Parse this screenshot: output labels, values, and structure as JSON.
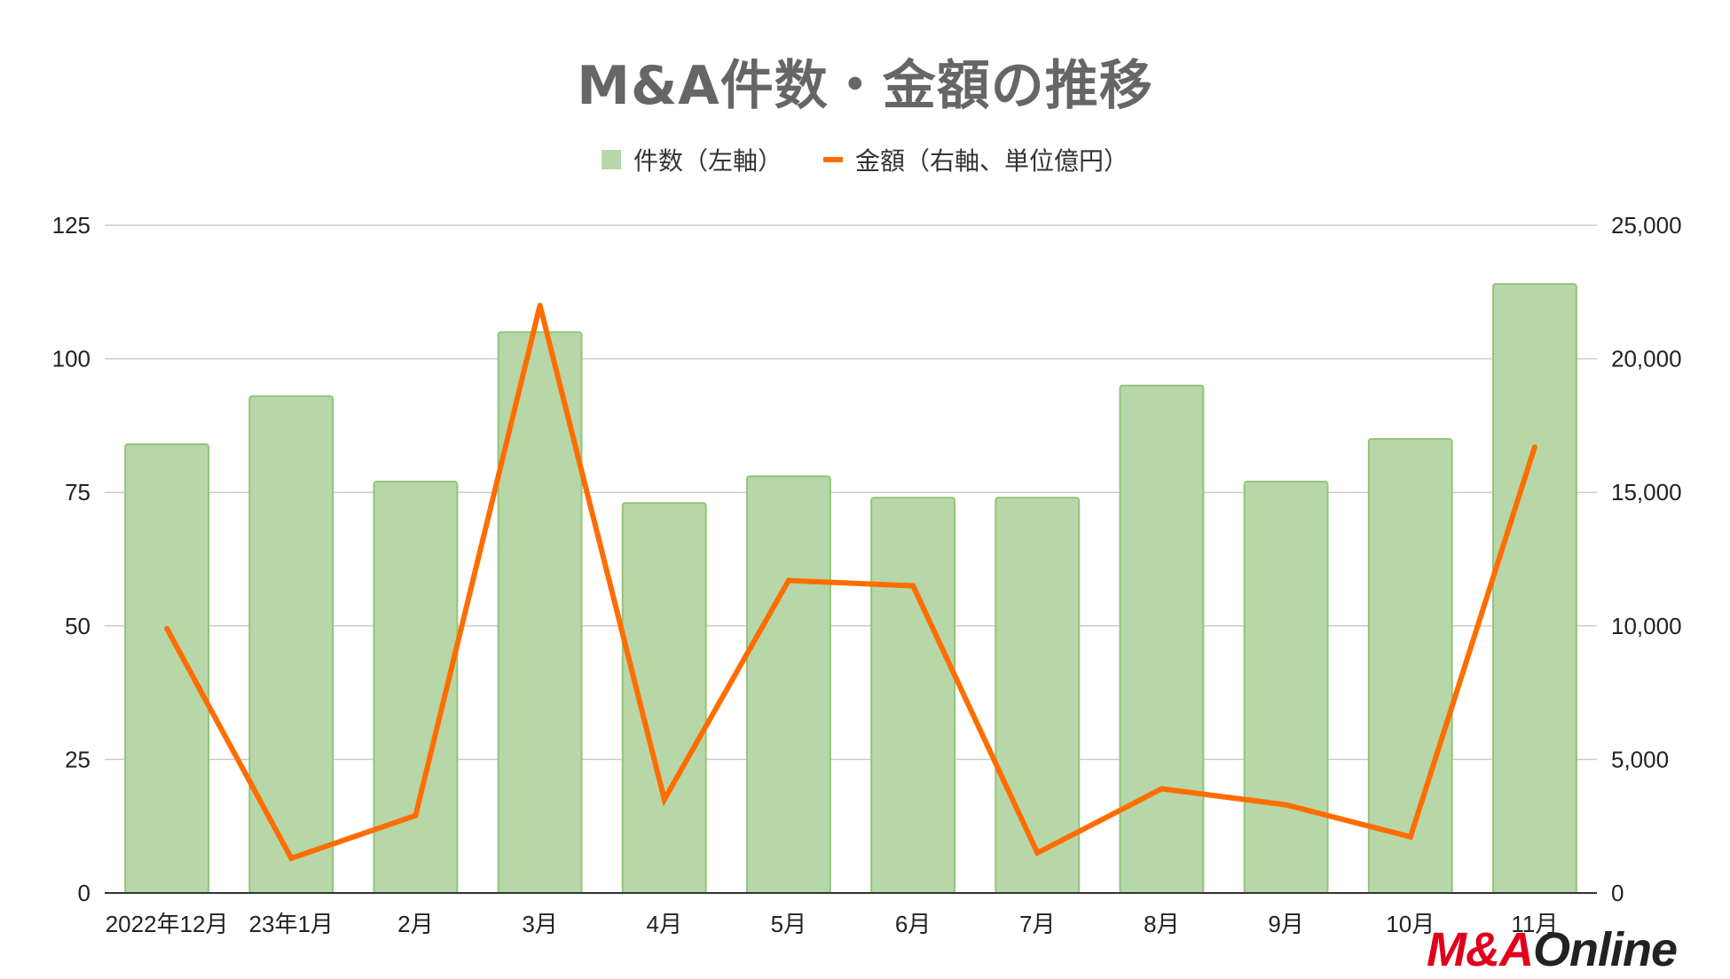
{
  "chart_data": {
    "type": "bar",
    "title": "M&A件数・金額の推移",
    "categories": [
      "2022年12月",
      "23年1月",
      "2月",
      "3月",
      "4月",
      "5月",
      "6月",
      "7月",
      "8月",
      "9月",
      "10月",
      "11月"
    ],
    "series": [
      {
        "name": "件数（左軸）",
        "type": "bar",
        "axis": "left",
        "values": [
          84,
          93,
          77,
          105,
          73,
          78,
          74,
          74,
          95,
          77,
          85,
          114
        ]
      },
      {
        "name": "金額（右軸、単位億円）",
        "type": "line",
        "axis": "right",
        "values": [
          9900,
          1300,
          2900,
          22000,
          3500,
          11700,
          11500,
          1500,
          3900,
          3300,
          2100,
          16700
        ]
      }
    ],
    "yleft": {
      "ylim": [
        0,
        125
      ],
      "ticks": [
        "0",
        "25",
        "50",
        "75",
        "100",
        "125"
      ]
    },
    "yright": {
      "ylim": [
        0,
        25000
      ],
      "ticks": [
        "0",
        "5,000",
        "10,000",
        "15,000",
        "20,000",
        "25,000"
      ]
    },
    "grid": true,
    "legend_position": "top",
    "colors": {
      "bar": "#b7d7a8",
      "bar_border": "#93c47d",
      "line": "#ff6d01",
      "grid": "#cccccc"
    }
  },
  "logo": {
    "part1": "M&A",
    "part2": "Online"
  }
}
